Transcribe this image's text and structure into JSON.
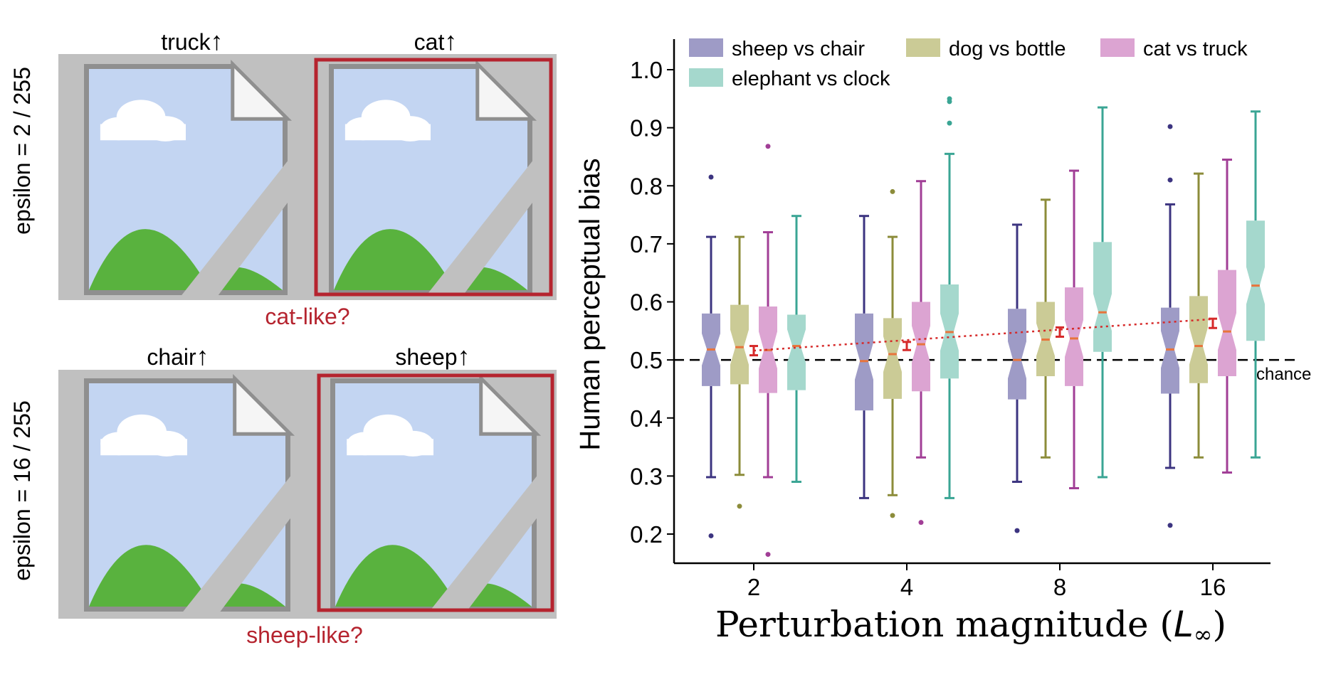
{
  "panel_a": {
    "rows": [
      {
        "side_label": "epsilon = 2 / 255",
        "left_label": "truck",
        "right_label": "cat",
        "arrow": "↑",
        "caption": "cat-like?"
      },
      {
        "side_label": "epsilon = 16 / 255",
        "left_label": "chair",
        "right_label": "sheep",
        "arrow": "↑",
        "caption": "sheep-like?"
      }
    ],
    "image_icon": "broken-image-placeholder-icon",
    "highlight_color": "#b5242f"
  },
  "chart_data": {
    "type": "box",
    "title": "",
    "xlabel": "Perturbation magnitude (L∞)",
    "xlabel_prefix": "Perturbation magnitude (",
    "xlabel_symbol": "L",
    "xlabel_subscript": "∞",
    "xlabel_suffix": ")",
    "ylabel": "Human perceptual bias",
    "ylim": [
      0.15,
      1.04
    ],
    "yticks": [
      0.2,
      0.3,
      0.4,
      0.5,
      0.6,
      0.7,
      0.8,
      0.9,
      1.0
    ],
    "ytick_labels": [
      "0.2",
      "0.3",
      "0.4",
      "0.5",
      "0.6",
      "0.7",
      "0.8",
      "0.9",
      "1.0"
    ],
    "categories": [
      "2",
      "4",
      "8",
      "16"
    ],
    "legend_position": "top",
    "chance": {
      "value": 0.5,
      "label": "chance"
    },
    "series": [
      {
        "name": "sheep vs chair",
        "fill": "#9e9bc6",
        "stroke": "#3c3480",
        "boxes": [
          {
            "q1": 0.455,
            "median": 0.518,
            "q3": 0.58,
            "whislo": 0.298,
            "whishi": 0.712,
            "fliers": [
              0.815,
              0.197
            ]
          },
          {
            "q1": 0.413,
            "median": 0.498,
            "q3": 0.58,
            "whislo": 0.262,
            "whishi": 0.748,
            "fliers": []
          },
          {
            "q1": 0.432,
            "median": 0.5,
            "q3": 0.588,
            "whislo": 0.29,
            "whishi": 0.733,
            "fliers": [
              0.206
            ]
          },
          {
            "q1": 0.442,
            "median": 0.518,
            "q3": 0.59,
            "whislo": 0.314,
            "whishi": 0.768,
            "fliers": [
              0.902,
              0.81,
              0.215
            ]
          }
        ]
      },
      {
        "name": "dog vs bottle",
        "fill": "#cbcb96",
        "stroke": "#8c8c3a",
        "boxes": [
          {
            "q1": 0.458,
            "median": 0.522,
            "q3": 0.595,
            "whislo": 0.302,
            "whishi": 0.712,
            "fliers": [
              0.248
            ]
          },
          {
            "q1": 0.433,
            "median": 0.51,
            "q3": 0.572,
            "whislo": 0.267,
            "whishi": 0.712,
            "fliers": [
              0.79,
              0.232
            ]
          },
          {
            "q1": 0.472,
            "median": 0.535,
            "q3": 0.6,
            "whislo": 0.332,
            "whishi": 0.776,
            "fliers": []
          },
          {
            "q1": 0.46,
            "median": 0.524,
            "q3": 0.61,
            "whislo": 0.332,
            "whishi": 0.821,
            "fliers": []
          }
        ]
      },
      {
        "name": "cat vs truck",
        "fill": "#dca4d2",
        "stroke": "#a13e96",
        "boxes": [
          {
            "q1": 0.443,
            "median": 0.517,
            "q3": 0.592,
            "whislo": 0.298,
            "whishi": 0.72,
            "fliers": [
              0.868,
              0.165
            ]
          },
          {
            "q1": 0.446,
            "median": 0.527,
            "q3": 0.6,
            "whislo": 0.332,
            "whishi": 0.808,
            "fliers": [
              0.22
            ]
          },
          {
            "q1": 0.455,
            "median": 0.537,
            "q3": 0.625,
            "whislo": 0.279,
            "whishi": 0.826,
            "fliers": []
          },
          {
            "q1": 0.472,
            "median": 0.549,
            "q3": 0.655,
            "whislo": 0.306,
            "whishi": 0.845,
            "fliers": []
          }
        ]
      },
      {
        "name": "elephant vs clock",
        "fill": "#a5d8cd",
        "stroke": "#3aa594",
        "boxes": [
          {
            "q1": 0.448,
            "median": 0.524,
            "q3": 0.578,
            "whislo": 0.29,
            "whishi": 0.748,
            "fliers": []
          },
          {
            "q1": 0.468,
            "median": 0.548,
            "q3": 0.63,
            "whislo": 0.262,
            "whishi": 0.855,
            "fliers": [
              0.95,
              0.945,
              0.908
            ]
          },
          {
            "q1": 0.514,
            "median": 0.582,
            "q3": 0.703,
            "whislo": 0.298,
            "whishi": 0.935,
            "fliers": []
          },
          {
            "q1": 0.533,
            "median": 0.628,
            "q3": 0.74,
            "whislo": 0.332,
            "whishi": 0.928,
            "fliers": []
          }
        ]
      }
    ],
    "mean_trend": {
      "color": "#d62a2a",
      "points": [
        {
          "x": "2",
          "mean": 0.516,
          "err": 0.008
        },
        {
          "x": "4",
          "mean": 0.524,
          "err": 0.007
        },
        {
          "x": "8",
          "mean": 0.548,
          "err": 0.008
        },
        {
          "x": "16",
          "mean": 0.563,
          "err": 0.008
        }
      ]
    },
    "median_color": "#e8743b"
  }
}
